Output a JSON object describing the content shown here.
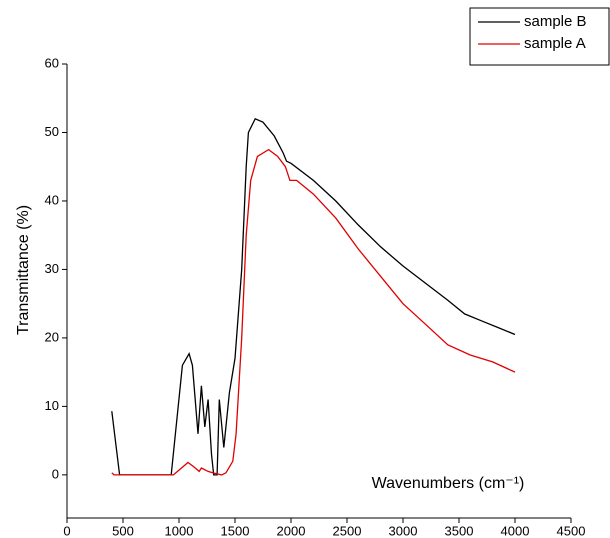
{
  "chart_data": {
    "type": "line",
    "x_label": "Wavenumbers (cm⁻¹)",
    "y_label": "Transmittance (%)",
    "xlim": [
      0,
      4500
    ],
    "xticks": [
      0,
      500,
      1000,
      1500,
      2000,
      2500,
      3000,
      3500,
      4000,
      4500
    ],
    "ylim": [
      -6.3,
      60
    ],
    "yticks": [
      0,
      10,
      20,
      30,
      40,
      50,
      60
    ],
    "legend": "top-right",
    "series": [
      {
        "name": "sample B",
        "color": "#000000",
        "x": [
          400,
          470,
          930,
          1030,
          1090,
          1120,
          1170,
          1200,
          1230,
          1260,
          1290,
          1310,
          1340,
          1360,
          1400,
          1450,
          1500,
          1560,
          1600,
          1620,
          1680,
          1750,
          1850,
          1930,
          1960,
          2000,
          2200,
          2400,
          2600,
          2800,
          3000,
          3200,
          3400,
          3550,
          3700,
          3850,
          4000
        ],
        "values": [
          9.3,
          0,
          0,
          16,
          17.7,
          16,
          6,
          13,
          7,
          11,
          3,
          0,
          0,
          11,
          4,
          12,
          17,
          30,
          45,
          50,
          52,
          51.5,
          49.5,
          47,
          45.8,
          45.5,
          43,
          40,
          36.5,
          33.3,
          30.5,
          28,
          25.5,
          23.5,
          22.5,
          21.5,
          20.5
        ]
      },
      {
        "name": "sample A",
        "color": "#e00000",
        "x": [
          400,
          420,
          950,
          1000,
          1080,
          1130,
          1180,
          1200,
          1260,
          1300,
          1380,
          1420,
          1480,
          1510,
          1560,
          1600,
          1640,
          1700,
          1800,
          1880,
          1950,
          1990,
          2050,
          2200,
          2400,
          2600,
          2800,
          3000,
          3200,
          3400,
          3600,
          3800,
          4000
        ],
        "values": [
          0.3,
          0,
          0,
          0.7,
          1.8,
          1.2,
          0.5,
          1,
          0.5,
          0.3,
          0,
          0.3,
          2,
          6,
          20,
          35,
          43,
          46.5,
          47.5,
          46.5,
          45,
          43,
          43,
          41,
          37.5,
          33,
          29,
          25,
          22,
          19,
          17.5,
          16.5,
          15
        ]
      }
    ]
  }
}
